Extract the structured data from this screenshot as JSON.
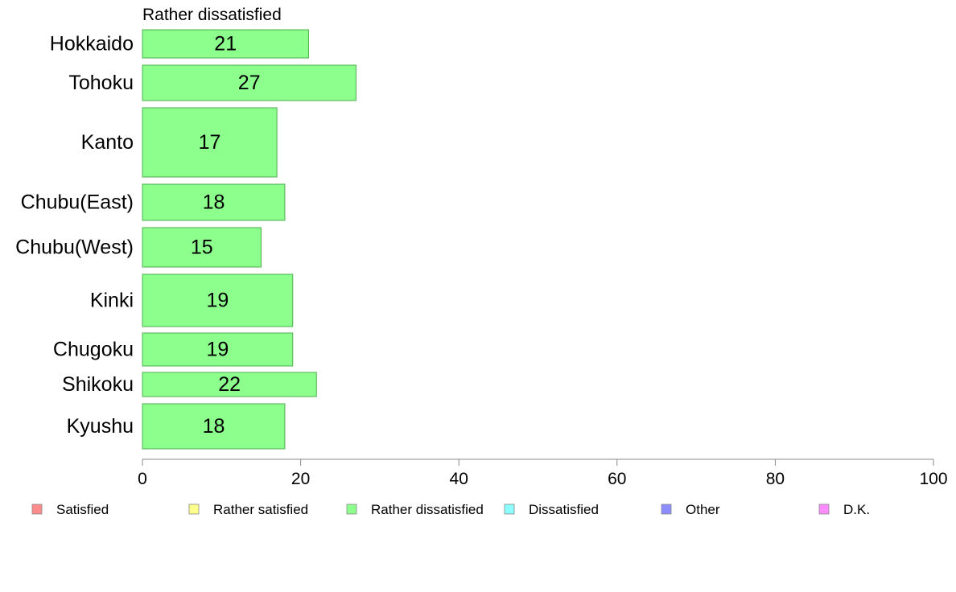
{
  "chart_data": {
    "type": "bar",
    "orientation": "horizontal",
    "title": "Rather dissatisfied",
    "categories": [
      "Hokkaido",
      "Tohoku",
      "Kanto",
      "Chubu(East)",
      "Chubu(West)",
      "Kinki",
      "Chugoku",
      "Shikoku",
      "Kyushu"
    ],
    "values": [
      21,
      27,
      17,
      18,
      15,
      19,
      19,
      22,
      18
    ],
    "data_labels": [
      "21",
      "27",
      "17",
      "18",
      "15",
      "19",
      "19",
      "22",
      "18"
    ],
    "bar_color": "#8cff8c",
    "bar_stroke": "#4caf4c",
    "xlim": [
      0,
      100
    ],
    "xticks": [
      "0",
      "20",
      "40",
      "60",
      "80",
      "100"
    ],
    "xlabel": "",
    "ylabel": "",
    "grid": false,
    "legend": {
      "placement": "bottom",
      "items": [
        {
          "label": "Satisfied",
          "color": "#ff8c8c"
        },
        {
          "label": "Rather satisfied",
          "color": "#ffff8c"
        },
        {
          "label": "Rather dissatisfied",
          "color": "#8cff8c"
        },
        {
          "label": "Dissatisfied",
          "color": "#8cffff"
        },
        {
          "label": "Other",
          "color": "#8c8cff"
        },
        {
          "label": "D.K.",
          "color": "#ff8cff"
        }
      ]
    }
  }
}
